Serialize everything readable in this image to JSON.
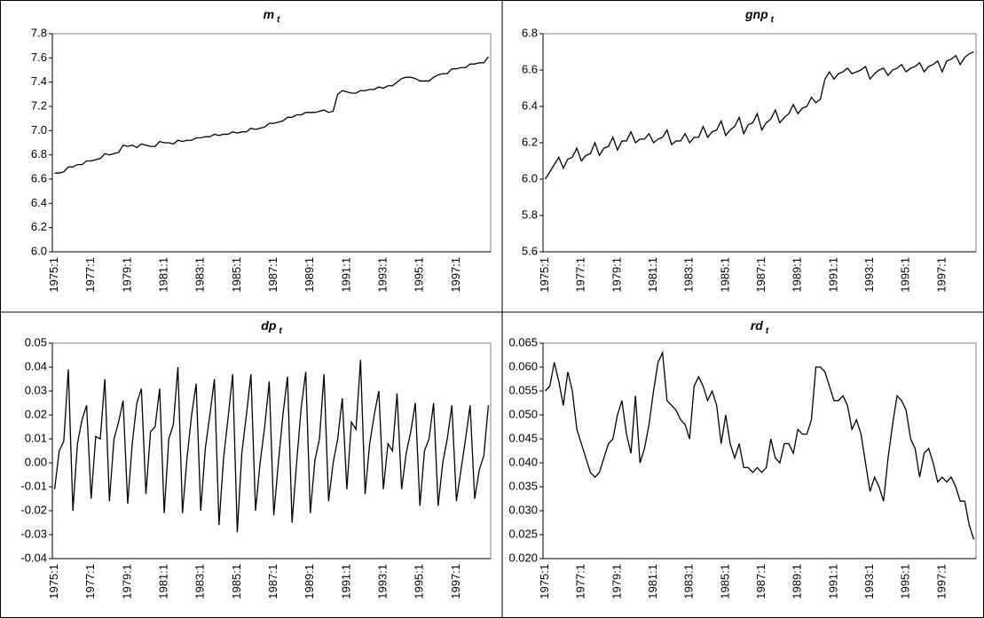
{
  "chart_data": [
    {
      "type": "line",
      "title": "m",
      "subscript": "t",
      "color": "#000000",
      "categories": [
        "1975:1",
        null,
        null,
        null,
        null,
        null,
        null,
        null,
        "1977:1",
        null,
        null,
        null,
        null,
        null,
        null,
        null,
        "1979:1",
        null,
        null,
        null,
        null,
        null,
        null,
        null,
        "1981:1",
        null,
        null,
        null,
        null,
        null,
        null,
        null,
        "1983:1",
        null,
        null,
        null,
        null,
        null,
        null,
        null,
        "1985:1",
        null,
        null,
        null,
        null,
        null,
        null,
        null,
        "1987:1",
        null,
        null,
        null,
        null,
        null,
        null,
        null,
        "1989:1",
        null,
        null,
        null,
        null,
        null,
        null,
        null,
        "1991:1",
        null,
        null,
        null,
        null,
        null,
        null,
        null,
        "1993:1",
        null,
        null,
        null,
        null,
        null,
        null,
        null,
        "1995:1",
        null,
        null,
        null,
        null,
        null,
        null,
        null,
        "1997:1",
        null,
        null,
        null,
        null,
        null,
        null,
        null
      ],
      "values": [
        6.65,
        6.65,
        6.66,
        6.7,
        6.7,
        6.72,
        6.72,
        6.75,
        6.75,
        6.76,
        6.77,
        6.81,
        6.8,
        6.81,
        6.82,
        6.88,
        6.87,
        6.88,
        6.86,
        6.89,
        6.88,
        6.87,
        6.87,
        6.91,
        6.9,
        6.9,
        6.89,
        6.92,
        6.91,
        6.92,
        6.92,
        6.94,
        6.94,
        6.95,
        6.95,
        6.97,
        6.96,
        6.97,
        6.97,
        6.99,
        6.98,
        6.99,
        6.99,
        7.02,
        7.01,
        7.02,
        7.03,
        7.06,
        7.06,
        7.07,
        7.08,
        7.11,
        7.11,
        7.13,
        7.13,
        7.15,
        7.15,
        7.15,
        7.16,
        7.17,
        7.15,
        7.16,
        7.3,
        7.33,
        7.32,
        7.31,
        7.31,
        7.33,
        7.33,
        7.34,
        7.34,
        7.36,
        7.35,
        7.37,
        7.37,
        7.4,
        7.43,
        7.44,
        7.44,
        7.43,
        7.41,
        7.41,
        7.41,
        7.44,
        7.46,
        7.47,
        7.47,
        7.51,
        7.51,
        7.52,
        7.52,
        7.55,
        7.55,
        7.56,
        7.56,
        7.61
      ],
      "ylim": [
        6.0,
        7.8
      ],
      "yticks": [
        {
          "value": 6,
          "label": "6.0"
        },
        6.2,
        6.4,
        6.6,
        6.8,
        {
          "value": 7,
          "label": "7.0"
        },
        7.2,
        7.4,
        7.6,
        7.8
      ]
    },
    {
      "type": "line",
      "title": "gnp",
      "subscript": "t",
      "color": "#000000",
      "categories": [
        "1975:1",
        null,
        null,
        null,
        null,
        null,
        null,
        null,
        "1977:1",
        null,
        null,
        null,
        null,
        null,
        null,
        null,
        "1979:1",
        null,
        null,
        null,
        null,
        null,
        null,
        null,
        "1981:1",
        null,
        null,
        null,
        null,
        null,
        null,
        null,
        "1983:1",
        null,
        null,
        null,
        null,
        null,
        null,
        null,
        "1985:1",
        null,
        null,
        null,
        null,
        null,
        null,
        null,
        "1987:1",
        null,
        null,
        null,
        null,
        null,
        null,
        null,
        "1989:1",
        null,
        null,
        null,
        null,
        null,
        null,
        null,
        "1991:1",
        null,
        null,
        null,
        null,
        null,
        null,
        null,
        "1993:1",
        null,
        null,
        null,
        null,
        null,
        null,
        null,
        "1995:1",
        null,
        null,
        null,
        null,
        null,
        null,
        null,
        "1997:1",
        null,
        null,
        null,
        null,
        null,
        null,
        null
      ],
      "values": [
        6.0,
        6.04,
        6.08,
        6.12,
        6.06,
        6.11,
        6.12,
        6.17,
        6.1,
        6.13,
        6.14,
        6.2,
        6.13,
        6.17,
        6.18,
        6.23,
        6.16,
        6.21,
        6.21,
        6.26,
        6.2,
        6.22,
        6.22,
        6.25,
        6.2,
        6.22,
        6.23,
        6.27,
        6.19,
        6.21,
        6.21,
        6.25,
        6.2,
        6.23,
        6.23,
        6.29,
        6.23,
        6.26,
        6.27,
        6.32,
        6.24,
        6.27,
        6.29,
        6.34,
        6.25,
        6.3,
        6.31,
        6.36,
        6.27,
        6.31,
        6.33,
        6.38,
        6.31,
        6.34,
        6.36,
        6.41,
        6.36,
        6.39,
        6.4,
        6.45,
        6.42,
        6.44,
        6.55,
        6.59,
        6.55,
        6.58,
        6.59,
        6.61,
        6.58,
        6.59,
        6.6,
        6.62,
        6.55,
        6.58,
        6.6,
        6.61,
        6.57,
        6.6,
        6.61,
        6.63,
        6.59,
        6.61,
        6.62,
        6.64,
        6.59,
        6.62,
        6.63,
        6.65,
        6.59,
        6.65,
        6.66,
        6.68,
        6.63,
        6.67,
        6.69,
        6.7
      ],
      "ylim": [
        5.6,
        6.8
      ],
      "yticks": [
        5.6,
        5.8,
        {
          "value": 6,
          "label": "6.0"
        },
        6.2,
        6.4,
        6.6,
        6.8
      ]
    },
    {
      "type": "line",
      "title": "dp",
      "subscript": "t",
      "color": "#000000",
      "categories": [
        "1975:1",
        null,
        null,
        null,
        null,
        null,
        null,
        null,
        "1977:1",
        null,
        null,
        null,
        null,
        null,
        null,
        null,
        "1979:1",
        null,
        null,
        null,
        null,
        null,
        null,
        null,
        "1981:1",
        null,
        null,
        null,
        null,
        null,
        null,
        null,
        "1983:1",
        null,
        null,
        null,
        null,
        null,
        null,
        null,
        "1985:1",
        null,
        null,
        null,
        null,
        null,
        null,
        null,
        "1987:1",
        null,
        null,
        null,
        null,
        null,
        null,
        null,
        "1989:1",
        null,
        null,
        null,
        null,
        null,
        null,
        null,
        "1991:1",
        null,
        null,
        null,
        null,
        null,
        null,
        null,
        "1993:1",
        null,
        null,
        null,
        null,
        null,
        null,
        null,
        "1995:1",
        null,
        null,
        null,
        null,
        null,
        null,
        null,
        "1997:1",
        null,
        null,
        null,
        null,
        null,
        null,
        null
      ],
      "values": [
        -0.011,
        0.005,
        0.009,
        0.039,
        -0.02,
        0.008,
        0.018,
        0.024,
        -0.015,
        0.011,
        0.01,
        0.035,
        -0.016,
        0.01,
        0.017,
        0.026,
        -0.017,
        0.008,
        0.025,
        0.031,
        -0.013,
        0.013,
        0.015,
        0.031,
        -0.021,
        0.01,
        0.016,
        0.04,
        -0.021,
        0.002,
        0.02,
        0.033,
        -0.02,
        0.006,
        0.02,
        0.035,
        -0.026,
        0.002,
        0.019,
        0.037,
        -0.029,
        0.004,
        0.02,
        0.037,
        -0.02,
        0.0,
        0.015,
        0.034,
        -0.022,
        0.0,
        0.02,
        0.036,
        -0.025,
        0.0,
        0.023,
        0.038,
        -0.021,
        0.001,
        0.01,
        0.037,
        -0.016,
        0.0,
        0.01,
        0.027,
        -0.011,
        0.017,
        0.014,
        0.043,
        -0.013,
        0.008,
        0.02,
        0.03,
        -0.011,
        0.008,
        0.005,
        0.029,
        -0.011,
        0.004,
        0.013,
        0.025,
        -0.018,
        0.005,
        0.01,
        0.025,
        -0.018,
        0.0,
        0.01,
        0.024,
        -0.016,
        -0.003,
        0.01,
        0.024,
        -0.015,
        -0.003,
        0.003,
        0.024
      ],
      "ylim": [
        -0.04,
        0.05
      ],
      "yticks": [
        -0.04,
        -0.03,
        -0.02,
        -0.01,
        {
          "value": 0,
          "label": "0.00"
        },
        0.01,
        0.02,
        0.03,
        0.04,
        0.05
      ]
    },
    {
      "type": "line",
      "title": "rd",
      "subscript": "t",
      "color": "#000000",
      "categories": [
        "1975:1",
        null,
        null,
        null,
        null,
        null,
        null,
        null,
        "1977:1",
        null,
        null,
        null,
        null,
        null,
        null,
        null,
        "1979:1",
        null,
        null,
        null,
        null,
        null,
        null,
        null,
        "1981:1",
        null,
        null,
        null,
        null,
        null,
        null,
        null,
        "1983:1",
        null,
        null,
        null,
        null,
        null,
        null,
        null,
        "1985:1",
        null,
        null,
        null,
        null,
        null,
        null,
        null,
        "1987:1",
        null,
        null,
        null,
        null,
        null,
        null,
        null,
        "1989:1",
        null,
        null,
        null,
        null,
        null,
        null,
        null,
        "1991:1",
        null,
        null,
        null,
        null,
        null,
        null,
        null,
        "1993:1",
        null,
        null,
        null,
        null,
        null,
        null,
        null,
        "1995:1",
        null,
        null,
        null,
        null,
        null,
        null,
        null,
        "1997:1",
        null,
        null,
        null,
        null,
        null,
        null,
        null
      ],
      "values": [
        0.055,
        0.056,
        0.061,
        0.057,
        0.052,
        0.059,
        0.055,
        0.047,
        0.044,
        0.041,
        0.038,
        0.037,
        0.038,
        0.041,
        0.044,
        0.045,
        0.05,
        0.053,
        0.046,
        0.042,
        0.054,
        0.04,
        0.043,
        0.048,
        0.055,
        0.061,
        0.063,
        0.053,
        0.052,
        0.051,
        0.049,
        0.048,
        0.045,
        0.056,
        0.058,
        0.056,
        0.053,
        0.055,
        0.052,
        0.044,
        0.05,
        0.044,
        0.041,
        0.044,
        0.039,
        0.039,
        0.038,
        0.039,
        0.038,
        0.039,
        0.045,
        0.041,
        0.04,
        0.044,
        0.044,
        0.042,
        0.047,
        0.046,
        0.046,
        0.049,
        0.06,
        0.06,
        0.059,
        0.056,
        0.053,
        0.053,
        0.054,
        0.052,
        0.047,
        0.049,
        0.046,
        0.04,
        0.034,
        0.037,
        0.035,
        0.032,
        0.041,
        0.048,
        0.054,
        0.053,
        0.051,
        0.045,
        0.043,
        0.037,
        0.042,
        0.043,
        0.04,
        0.036,
        0.037,
        0.036,
        0.037,
        0.035,
        0.032,
        0.032,
        0.027,
        0.024
      ],
      "ylim": [
        0.02,
        0.065
      ],
      "yticks": [
        {
          "value": 0.02,
          "label": "0.020"
        },
        0.025,
        {
          "value": 0.03,
          "label": "0.030"
        },
        0.035,
        {
          "value": 0.04,
          "label": "0.040"
        },
        0.045,
        {
          "value": 0.05,
          "label": "0.050"
        },
        0.055,
        {
          "value": 0.06,
          "label": "0.060"
        },
        0.065
      ]
    }
  ]
}
